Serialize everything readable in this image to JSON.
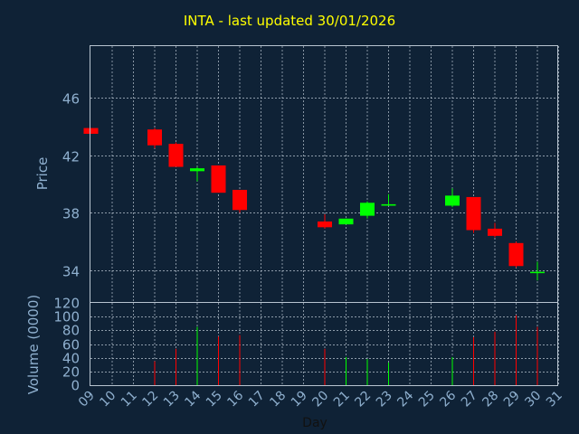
{
  "title": "INTA - last updated 30/01/2026",
  "colors": {
    "background": "#0f2236",
    "title": "#ffff00",
    "axis_text": "#8fb0cf",
    "grid": "#b8c4d0",
    "up": "#00ff00",
    "down": "#ff0000"
  },
  "chart_data": [
    {
      "type": "candlestick",
      "title": "INTA - last updated 30/01/2026",
      "ylabel": "Price",
      "ylim": [
        31.8,
        49.6
      ],
      "yticks": [
        34,
        38,
        42,
        46
      ],
      "grid": true,
      "x": [
        "09",
        "10",
        "11",
        "12",
        "13",
        "14",
        "15",
        "16",
        "17",
        "18",
        "19",
        "20",
        "21",
        "22",
        "23",
        "24",
        "25",
        "26",
        "27",
        "28",
        "29",
        "30",
        "31"
      ],
      "candles": [
        {
          "day": "09",
          "open": 43.9,
          "high": 43.9,
          "low": 43.5,
          "close": 43.5
        },
        {
          "day": "12",
          "open": 43.8,
          "high": 43.9,
          "low": 42.5,
          "close": 42.7
        },
        {
          "day": "13",
          "open": 42.8,
          "high": 42.9,
          "low": 41.2,
          "close": 41.2
        },
        {
          "day": "14",
          "open": 40.9,
          "high": 41.2,
          "low": 40.2,
          "close": 41.1
        },
        {
          "day": "15",
          "open": 41.3,
          "high": 41.3,
          "low": 39.4,
          "close": 39.4
        },
        {
          "day": "16",
          "open": 39.6,
          "high": 39.6,
          "low": 38.0,
          "close": 38.2
        },
        {
          "day": "20",
          "open": 37.4,
          "high": 37.9,
          "low": 36.9,
          "close": 37.0
        },
        {
          "day": "21",
          "open": 37.2,
          "high": 37.6,
          "low": 37.2,
          "close": 37.6
        },
        {
          "day": "22",
          "open": 37.8,
          "high": 38.8,
          "low": 37.6,
          "close": 38.7
        },
        {
          "day": "23",
          "open": 38.5,
          "high": 39.3,
          "low": 38.5,
          "close": 38.6
        },
        {
          "day": "26",
          "open": 38.5,
          "high": 39.7,
          "low": 38.4,
          "close": 39.2
        },
        {
          "day": "27",
          "open": 39.1,
          "high": 39.1,
          "low": 36.6,
          "close": 36.8
        },
        {
          "day": "28",
          "open": 36.9,
          "high": 37.3,
          "low": 36.3,
          "close": 36.4
        },
        {
          "day": "29",
          "open": 35.9,
          "high": 36.0,
          "low": 34.2,
          "close": 34.3
        },
        {
          "day": "30",
          "open": 33.9,
          "high": 34.6,
          "low": 33.3,
          "close": 33.9
        }
      ]
    },
    {
      "type": "bar",
      "ylabel": "Volume (0000)",
      "xlabel": "Day",
      "ylim": [
        0,
        120
      ],
      "yticks": [
        0,
        20,
        40,
        60,
        80,
        100,
        120
      ],
      "grid": true,
      "x": [
        "09",
        "10",
        "11",
        "12",
        "13",
        "14",
        "15",
        "16",
        "17",
        "18",
        "19",
        "20",
        "21",
        "22",
        "23",
        "24",
        "25",
        "26",
        "27",
        "28",
        "29",
        "30",
        "31"
      ],
      "bars": [
        {
          "day": "12",
          "value": 35,
          "color": "down"
        },
        {
          "day": "13",
          "value": 53,
          "color": "down"
        },
        {
          "day": "14",
          "value": 85,
          "color": "up"
        },
        {
          "day": "15",
          "value": 71,
          "color": "down"
        },
        {
          "day": "16",
          "value": 73,
          "color": "down"
        },
        {
          "day": "20",
          "value": 53,
          "color": "down"
        },
        {
          "day": "21",
          "value": 41,
          "color": "up"
        },
        {
          "day": "22",
          "value": 38,
          "color": "up"
        },
        {
          "day": "23",
          "value": 33,
          "color": "up"
        },
        {
          "day": "26",
          "value": 41,
          "color": "up"
        },
        {
          "day": "27",
          "value": 70,
          "color": "down"
        },
        {
          "day": "28",
          "value": 78,
          "color": "down"
        },
        {
          "day": "29",
          "value": 102,
          "color": "down"
        },
        {
          "day": "30",
          "value": 85,
          "color": "down"
        }
      ]
    }
  ]
}
